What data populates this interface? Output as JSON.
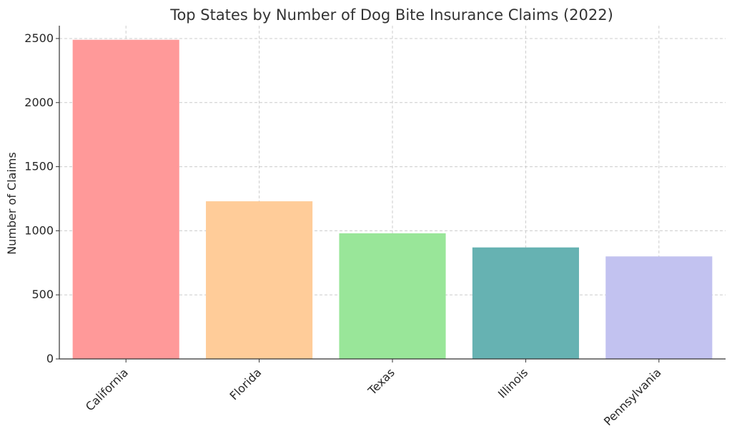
{
  "chart_data": {
    "type": "bar",
    "title": "Top States by Number of Dog Bite Insurance Claims (2022)",
    "xlabel": "",
    "ylabel": "Number of Claims",
    "categories": [
      "California",
      "Florida",
      "Texas",
      "Illinois",
      "Pennsylvania"
    ],
    "values": [
      2490,
      1230,
      980,
      870,
      800
    ],
    "colors": [
      "#ff9999",
      "#ffcc99",
      "#99e699",
      "#66b2b2",
      "#c2c2f0"
    ],
    "ylim": [
      0,
      2600
    ],
    "yticks": [
      0,
      500,
      1000,
      1500,
      2000,
      2500
    ],
    "grid": true
  }
}
